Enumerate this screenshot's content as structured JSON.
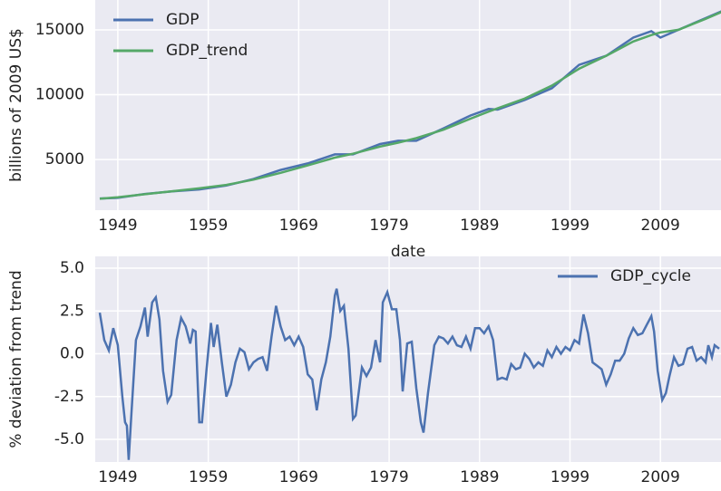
{
  "chart_data": [
    {
      "type": "line",
      "y_label": "billions of 2009 US$",
      "x_label": "date",
      "x": [
        1947,
        1949,
        1952,
        1955,
        1958,
        1961,
        1964,
        1967,
        1970,
        1973,
        1975,
        1978,
        1980,
        1982,
        1985,
        1988,
        1990,
        1991,
        1994,
        1997,
        2000,
        2003,
        2006,
        2008,
        2009,
        2011,
        2014,
        2016
      ],
      "series": [
        {
          "name": "GDP",
          "color": "#4c72b0",
          "values": [
            2000,
            2050,
            2350,
            2550,
            2700,
            3000,
            3500,
            4200,
            4700,
            5400,
            5400,
            6200,
            6450,
            6450,
            7400,
            8400,
            8900,
            8850,
            9600,
            10500,
            12300,
            13000,
            14400,
            14900,
            14400,
            15000,
            15900,
            16500
          ]
        },
        {
          "name": "GDP_trend",
          "color": "#55a868",
          "values": [
            1980,
            2100,
            2330,
            2560,
            2780,
            3050,
            3450,
            3980,
            4550,
            5150,
            5450,
            6000,
            6300,
            6650,
            7300,
            8150,
            8700,
            8950,
            9700,
            10700,
            12000,
            13000,
            14100,
            14600,
            14800,
            15000,
            15850,
            16450
          ]
        }
      ],
      "xlim": [
        1946.5,
        2015.7
      ],
      "ylim": [
        1100,
        17300
      ],
      "xticks": [
        1949,
        1959,
        1969,
        1979,
        1989,
        1999,
        2009
      ],
      "yticks": [
        5000,
        10000,
        15000
      ],
      "grid": true,
      "legend": "upper-left"
    },
    {
      "type": "line",
      "y_label": "% deviation from trend",
      "x": [
        1947.0,
        1947.5,
        1948.0,
        1948.5,
        1949.0,
        1949.5,
        1949.8,
        1950.0,
        1950.2,
        1950.5,
        1951.0,
        1951.5,
        1952.0,
        1952.3,
        1952.8,
        1953.2,
        1953.6,
        1954.0,
        1954.5,
        1954.9,
        1955.5,
        1956.0,
        1956.5,
        1957.0,
        1957.3,
        1957.6,
        1958.0,
        1958.3,
        1958.8,
        1959.3,
        1959.6,
        1960.0,
        1960.5,
        1961.0,
        1961.5,
        1962.0,
        1962.5,
        1963.0,
        1963.5,
        1964.0,
        1964.5,
        1965.0,
        1965.5,
        1966.0,
        1966.5,
        1967.0,
        1967.5,
        1968.0,
        1968.5,
        1969.0,
        1969.5,
        1970.0,
        1970.5,
        1971.0,
        1971.5,
        1972.0,
        1972.5,
        1973.0,
        1973.2,
        1973.6,
        1974.0,
        1974.5,
        1975.0,
        1975.3,
        1976.0,
        1976.5,
        1977.0,
        1977.5,
        1978.0,
        1978.3,
        1978.8,
        1979.3,
        1979.8,
        1980.2,
        1980.5,
        1981.0,
        1981.5,
        1982.0,
        1982.5,
        1982.8,
        1983.3,
        1984.0,
        1984.5,
        1985.0,
        1985.5,
        1986.0,
        1986.5,
        1987.0,
        1987.5,
        1988.0,
        1988.5,
        1989.0,
        1989.5,
        1990.0,
        1990.5,
        1991.0,
        1991.5,
        1992.0,
        1992.5,
        1993.0,
        1993.5,
        1994.0,
        1994.5,
        1995.0,
        1995.5,
        1996.0,
        1996.5,
        1997.0,
        1997.5,
        1998.0,
        1998.5,
        1999.0,
        1999.5,
        2000.0,
        2000.5,
        2001.0,
        2001.5,
        2002.0,
        2002.5,
        2003.0,
        2003.5,
        2004.0,
        2004.5,
        2005.0,
        2005.5,
        2006.0,
        2006.5,
        2007.0,
        2007.5,
        2008.0,
        2008.3,
        2008.7,
        2009.2,
        2009.6,
        2010.0,
        2010.5,
        2011.0,
        2011.5,
        2012.0,
        2012.5,
        2013.0,
        2013.5,
        2014.0,
        2014.3,
        2014.7,
        2015.0,
        2015.5
      ],
      "series": [
        {
          "name": "GDP_cycle",
          "color": "#4c72b0",
          "values": [
            2.4,
            0.8,
            0.2,
            1.5,
            0.5,
            -2.5,
            -4.0,
            -4.2,
            -6.2,
            -3.5,
            0.8,
            1.6,
            2.7,
            1.0,
            3.0,
            3.3,
            2.0,
            -1.0,
            -2.8,
            -2.4,
            0.8,
            2.1,
            1.6,
            0.6,
            1.4,
            1.3,
            -4.0,
            -4.0,
            -1.0,
            1.8,
            0.4,
            1.7,
            -0.5,
            -2.5,
            -1.8,
            -0.5,
            0.3,
            0.1,
            -0.9,
            -0.5,
            -0.3,
            -0.2,
            -1.0,
            1.0,
            2.8,
            1.6,
            0.8,
            1.0,
            0.5,
            1.0,
            0.4,
            -1.2,
            -1.5,
            -3.3,
            -1.5,
            -0.5,
            1.0,
            3.4,
            3.8,
            2.5,
            2.8,
            0.3,
            -3.8,
            -3.6,
            -0.8,
            -1.3,
            -0.8,
            0.8,
            -0.5,
            3.0,
            3.6,
            2.6,
            2.6,
            0.8,
            -2.2,
            0.6,
            0.7,
            -2.0,
            -4.0,
            -4.6,
            -2.3,
            0.5,
            1.0,
            0.9,
            0.6,
            1.0,
            0.5,
            0.4,
            1.0,
            0.3,
            1.5,
            1.5,
            1.2,
            1.6,
            0.8,
            -1.5,
            -1.4,
            -1.5,
            -0.6,
            -0.9,
            -0.8,
            0.0,
            -0.3,
            -0.8,
            -0.5,
            -0.7,
            0.2,
            -0.2,
            0.4,
            0.0,
            0.4,
            0.2,
            0.8,
            0.6,
            2.3,
            1.2,
            -0.5,
            -0.7,
            -0.9,
            -1.8,
            -1.2,
            -0.4,
            -0.4,
            0.0,
            0.9,
            1.5,
            1.1,
            1.2,
            1.7,
            2.2,
            1.3,
            -1.0,
            -2.7,
            -2.3,
            -1.3,
            -0.2,
            -0.7,
            -0.6,
            0.3,
            0.4,
            -0.4,
            -0.2,
            -0.5,
            0.5,
            -0.2,
            0.5,
            0.3
          ]
        }
      ],
      "xlim": [
        1946.5,
        2015.7
      ],
      "ylim": [
        -6.32,
        5.69
      ],
      "xticks": [
        1949,
        1959,
        1969,
        1979,
        1989,
        1999,
        2009
      ],
      "yticks": [
        {
          "value": -5,
          "label": "-5.0"
        },
        {
          "value": -2.5,
          "label": "-2.5"
        },
        {
          "value": 0,
          "label": "0.0"
        },
        {
          "value": 2.5,
          "label": "2.5"
        },
        {
          "value": 5,
          "label": "5.0"
        }
      ],
      "grid": true,
      "legend": "upper-right"
    }
  ]
}
